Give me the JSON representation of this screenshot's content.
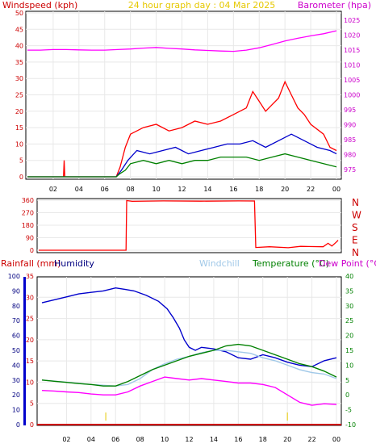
{
  "chart_data": [
    {
      "id": "wind_baro",
      "type": "line",
      "title": "24 hour graph day : 04 Mar 2025",
      "ylabel_left": "Windspeed (kph)",
      "ylabel_right": "Barometer (hpa)",
      "x_ticks": [
        "02",
        "04",
        "06",
        "08",
        "10",
        "12",
        "14",
        "16",
        "18",
        "20",
        "22",
        "00"
      ],
      "y_left_ticks": [
        "0",
        "5",
        "10",
        "15",
        "20",
        "25",
        "30",
        "35",
        "40",
        "45",
        "50"
      ],
      "y_left_range": [
        0,
        50
      ],
      "y_right_ticks": [
        "975",
        "980",
        "985",
        "990",
        "995",
        "1000",
        "1005",
        "1010",
        "1015",
        "1020",
        "1025"
      ],
      "y_right_range": [
        972.5,
        1027.5
      ],
      "colors": {
        "title": "#e6c800",
        "left": "#cc0000",
        "right": "#cc00cc",
        "gust": "#ff0000",
        "avg": "#0000cc",
        "low": "#008000",
        "baro": "#ff00ff"
      },
      "series": [
        {
          "name": "Barometer",
          "axis": "right",
          "x": [
            0,
            1,
            2,
            3,
            4,
            5,
            6,
            7,
            8,
            9,
            10,
            11,
            12,
            13,
            14,
            15,
            16,
            17,
            18,
            19,
            20,
            21,
            22,
            23,
            24
          ],
          "y": [
            1015.0,
            1015.0,
            1015.2,
            1015.2,
            1015.1,
            1015.0,
            1015.0,
            1015.2,
            1015.4,
            1015.7,
            1015.9,
            1015.6,
            1015.4,
            1015.1,
            1014.9,
            1014.7,
            1014.6,
            1015.0,
            1015.8,
            1016.9,
            1018.1,
            1019.0,
            1019.8,
            1020.5,
            1021.5
          ]
        },
        {
          "name": "Gust",
          "axis": "left",
          "x": [
            0,
            2.8,
            2.85,
            2.9,
            6.9,
            7.2,
            7.6,
            8,
            9,
            10,
            11,
            12,
            13,
            14,
            15,
            16,
            17,
            17.5,
            18,
            18.5,
            19,
            19.5,
            20,
            20.5,
            21,
            21.5,
            22,
            23,
            23.5,
            24
          ],
          "y": [
            0,
            0,
            5,
            0,
            0,
            3,
            9,
            13,
            15,
            16,
            14,
            15,
            17,
            16,
            17,
            19,
            21,
            26,
            23,
            20,
            22,
            24,
            29,
            25,
            21,
            19,
            16,
            13,
            9,
            8
          ]
        },
        {
          "name": "Average",
          "axis": "left",
          "x": [
            0,
            6.9,
            7.3,
            7.8,
            8.5,
            9.5,
            10.5,
            11.5,
            12.5,
            13.5,
            14.5,
            15.5,
            16.5,
            17.5,
            18.5,
            19.5,
            20.5,
            21.5,
            22.5,
            23.5,
            24
          ],
          "y": [
            0,
            0,
            2,
            5,
            8,
            7,
            8,
            9,
            7,
            8,
            9,
            10,
            10,
            11,
            9,
            11,
            13,
            11,
            9,
            8,
            7
          ]
        },
        {
          "name": "Low",
          "axis": "left",
          "x": [
            0,
            6.9,
            7.2,
            7.6,
            8,
            9,
            10,
            11,
            12,
            13,
            14,
            15,
            16,
            17,
            18,
            19,
            20,
            21,
            22,
            23,
            24
          ],
          "y": [
            0,
            0,
            1,
            2,
            4,
            5,
            4,
            5,
            4,
            5,
            5,
            6,
            6,
            6,
            5,
            6,
            7,
            6,
            5,
            4,
            3
          ]
        }
      ]
    },
    {
      "id": "direction",
      "type": "line",
      "ylabel_right": [
        "N",
        "W",
        "S",
        "E",
        "N"
      ],
      "x_ticks": [
        "02",
        "04",
        "06",
        "08",
        "10",
        "12",
        "14",
        "16",
        "18",
        "20",
        "22",
        "00"
      ],
      "y_ticks": [
        "0",
        "90",
        "180",
        "270",
        "360"
      ],
      "y_range": [
        0,
        360
      ],
      "colors": {
        "line": "#ff0000",
        "label": "#cc0000"
      },
      "series": [
        {
          "name": "Wind Direction",
          "x": [
            0,
            7.0,
            7.05,
            7.5,
            10,
            13,
            16,
            17.3,
            17.4,
            18.5,
            20,
            21,
            22.8,
            23.2,
            23.5,
            23.9,
            24
          ],
          "y": [
            0,
            0,
            357,
            352,
            355,
            353,
            355,
            354,
            20,
            25,
            18,
            28,
            25,
            50,
            30,
            62,
            72
          ]
        }
      ]
    },
    {
      "id": "temp_hum_rain",
      "type": "line",
      "labels": {
        "rainfall": "Rainfall (mm)",
        "humidity": "Humidity",
        "windchill": "Windchill",
        "temperature": "Temperature (°C)",
        "dewpoint": "Dew Point (°C)"
      },
      "x_ticks": [
        "02",
        "04",
        "06",
        "08",
        "10",
        "12",
        "14",
        "16",
        "18",
        "20",
        "22",
        "00"
      ],
      "rain_ticks": [
        "0",
        "5",
        "10",
        "15",
        "20",
        "25",
        "30",
        "35"
      ],
      "rain_range": [
        0,
        35
      ],
      "humidity_ticks": [
        "0",
        "10",
        "20",
        "30",
        "40",
        "50",
        "60",
        "70",
        "80",
        "90",
        "100"
      ],
      "humidity_range": [
        0,
        100
      ],
      "temp_ticks": [
        "-10",
        "-5",
        "0",
        "5",
        "10",
        "15",
        "20",
        "25",
        "30",
        "35",
        "40"
      ],
      "temp_range": [
        -10,
        40
      ],
      "colors": {
        "rainfall": "#cc0000",
        "humidity": "#000080",
        "windchill": "#a0c8e8",
        "temperature": "#008000",
        "dewpoint": "#cc00cc"
      },
      "markers_x": [
        5.2,
        20.0
      ],
      "series": [
        {
          "name": "Humidity",
          "axis": "humidity",
          "color": "#0000cc",
          "x": [
            0,
            1,
            2,
            3,
            4,
            5,
            6,
            6.8,
            7.5,
            8.5,
            9.5,
            10.2,
            10.7,
            11.2,
            11.6,
            12,
            12.5,
            13,
            14,
            15,
            16,
            17,
            18,
            19,
            20,
            21,
            22,
            23,
            24
          ],
          "y": [
            82,
            84,
            86,
            88,
            89,
            90,
            92,
            91,
            90,
            87,
            83,
            78,
            72,
            65,
            57,
            52,
            50,
            52,
            51,
            49,
            45,
            44,
            47,
            45,
            42,
            40,
            39,
            43,
            45
          ]
        },
        {
          "name": "Windchill",
          "axis": "temp",
          "color": "#a0c8e8",
          "x": [
            0,
            2,
            4,
            6,
            7,
            8,
            9,
            10,
            11,
            12,
            13,
            14,
            15,
            16,
            17,
            18,
            19,
            20,
            21,
            22,
            23,
            24
          ],
          "y": [
            5.0,
            4.3,
            3.5,
            3.0,
            3.5,
            5.5,
            8.5,
            10.5,
            12.0,
            13.0,
            14.2,
            15.0,
            15.0,
            14.5,
            14.0,
            12.5,
            11.5,
            10.0,
            8.5,
            7.5,
            7.0,
            5.5
          ]
        },
        {
          "name": "Temperature",
          "axis": "temp",
          "color": "#008000",
          "x": [
            0,
            1,
            2,
            3,
            4,
            5,
            6,
            7,
            8,
            9,
            10,
            11,
            12,
            13,
            14,
            15,
            16,
            17,
            18,
            19,
            20,
            21,
            22,
            23,
            24
          ],
          "y": [
            5.0,
            4.6,
            4.2,
            3.8,
            3.5,
            3.0,
            3.0,
            4.5,
            6.5,
            8.5,
            10.0,
            11.5,
            13.0,
            14.0,
            15.0,
            16.5,
            17.0,
            16.5,
            15.0,
            13.5,
            12.0,
            10.5,
            9.5,
            8.0,
            6.0
          ]
        },
        {
          "name": "Dew Point",
          "axis": "temp",
          "color": "#ff00ff",
          "x": [
            0,
            1,
            2,
            3,
            4,
            5,
            6,
            7,
            8,
            9,
            10,
            11,
            12,
            13,
            14,
            15,
            16,
            17,
            18,
            19,
            20,
            21,
            22,
            23,
            24
          ],
          "y": [
            1.5,
            1.3,
            1.0,
            0.8,
            0.3,
            0.0,
            0.0,
            1.0,
            3.0,
            4.5,
            6.0,
            5.5,
            5.0,
            5.5,
            5.0,
            4.5,
            4.0,
            4.0,
            3.5,
            2.5,
            0.0,
            -2.5,
            -3.5,
            -3.0,
            -3.2
          ]
        }
      ]
    }
  ]
}
